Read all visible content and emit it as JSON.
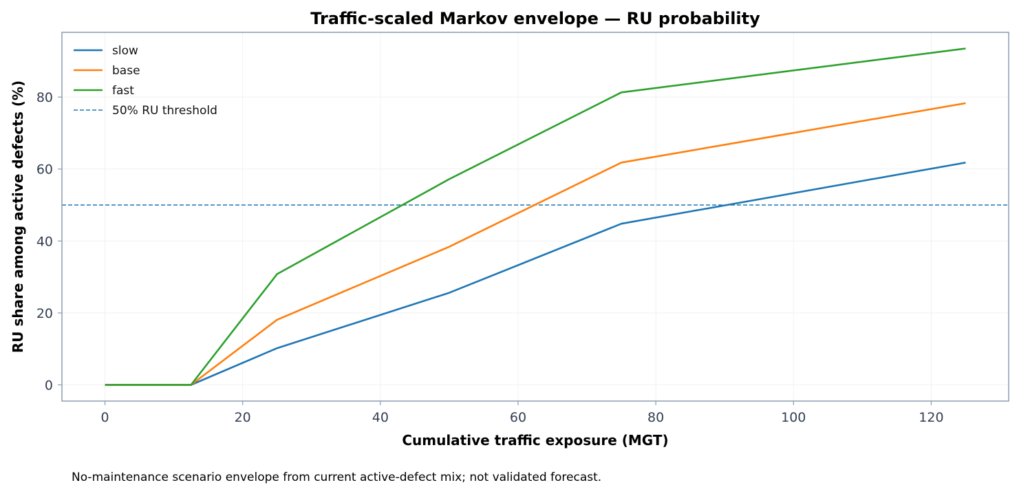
{
  "chart_data": {
    "type": "line",
    "title": "Traffic-scaled Markov envelope — RU probability",
    "xlabel": "Cumulative traffic exposure (MGT)",
    "ylabel": "RU share among active defects (%)",
    "xlim": [
      -6.25,
      131.25
    ],
    "ylim": [
      -4.5,
      98
    ],
    "xticks": [
      0,
      20,
      40,
      60,
      80,
      100,
      120
    ],
    "yticks": [
      0,
      20,
      40,
      60,
      80
    ],
    "grid": true,
    "legend": "top-left",
    "x": [
      0,
      12.5,
      25,
      50,
      75,
      125
    ],
    "series": [
      {
        "name": "slow",
        "color": "#1f77b4",
        "values": [
          0,
          0,
          10.2,
          25.6,
          44.8,
          61.8
        ]
      },
      {
        "name": "base",
        "color": "#ff7f0e",
        "values": [
          0,
          0,
          18.1,
          38.4,
          61.8,
          78.3
        ]
      },
      {
        "name": "fast",
        "color": "#2ca02c",
        "values": [
          0,
          0,
          30.8,
          57.2,
          81.3,
          93.5
        ]
      }
    ],
    "threshold": {
      "name": "50% RU threshold",
      "value": 50,
      "color": "#1f77b4",
      "style": "dashed"
    }
  },
  "footnote": "No-maintenance scenario envelope from current active-defect mix; not validated forecast."
}
